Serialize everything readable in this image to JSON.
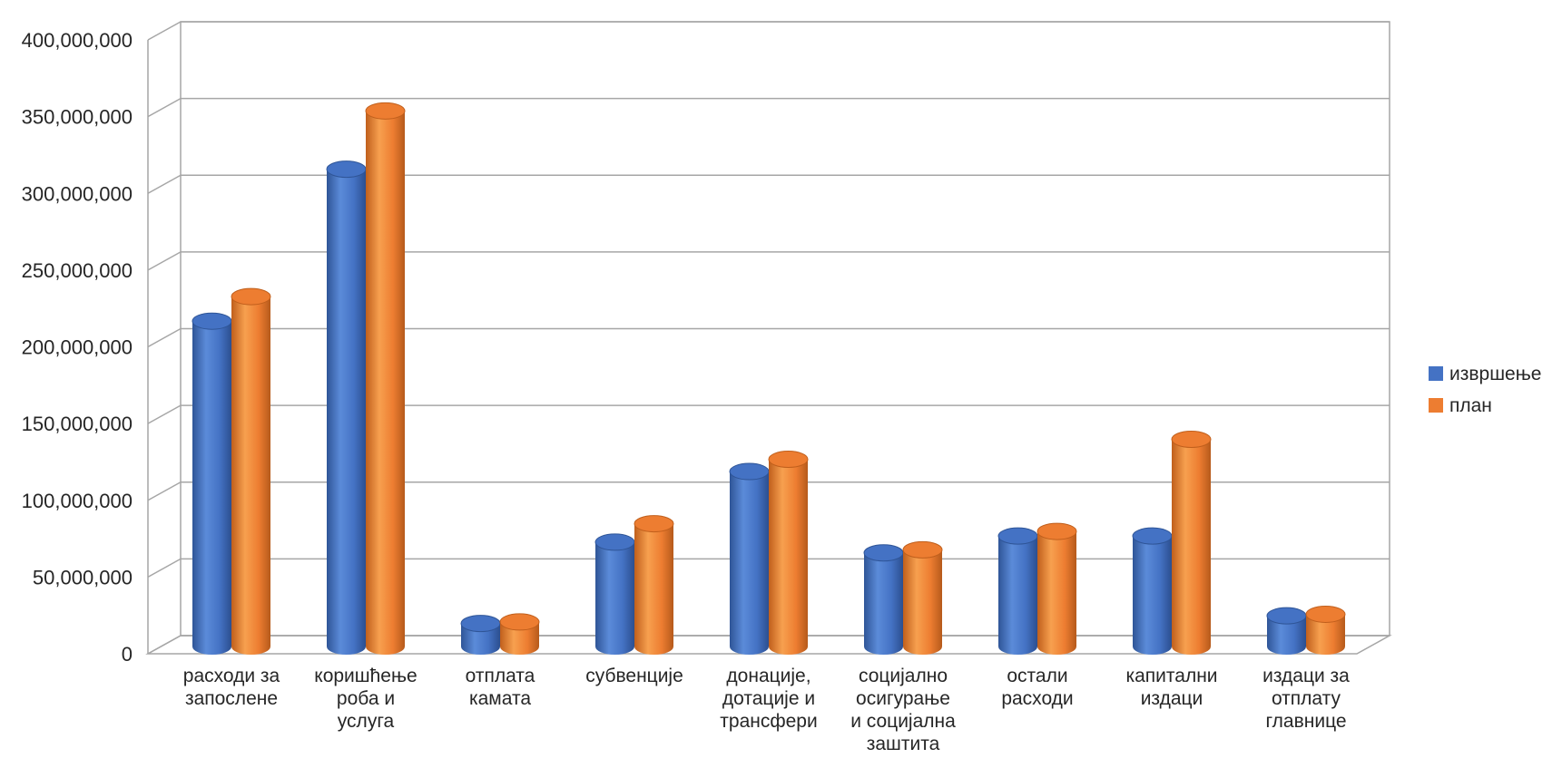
{
  "chart_data": {
    "type": "bar",
    "title": "",
    "xlabel": "",
    "ylabel": "",
    "ylim": [
      0,
      400000000
    ],
    "ytick_step": 50000000,
    "yticks": [
      "0",
      "50,000,000",
      "100,000,000",
      "150,000,000",
      "200,000,000",
      "250,000,000",
      "300,000,000",
      "350,000,000",
      "400,000,000"
    ],
    "grid": true,
    "legend_position": "right",
    "categories": [
      [
        "расходи за",
        "запослене"
      ],
      [
        "коришћење",
        "роба и",
        "услуга"
      ],
      [
        "отплата",
        "камата"
      ],
      [
        "субвенције"
      ],
      [
        "донације,",
        "дотације и",
        "трансфери"
      ],
      [
        "социјално",
        "осигурање",
        "и социјална",
        "заштита"
      ],
      [
        "остали",
        "расходи"
      ],
      [
        "капитални",
        "издаци"
      ],
      [
        "издаци за",
        "отплату",
        "главнице"
      ]
    ],
    "series": [
      {
        "name": "извршење",
        "color": "#4472C4",
        "values": [
          212000000,
          311000000,
          15000000,
          68000000,
          114000000,
          61000000,
          72000000,
          72000000,
          20000000
        ]
      },
      {
        "name": "план",
        "color": "#ED7D31",
        "values": [
          228000000,
          349000000,
          16000000,
          80000000,
          122000000,
          63000000,
          75000000,
          135000000,
          21000000
        ]
      }
    ]
  }
}
